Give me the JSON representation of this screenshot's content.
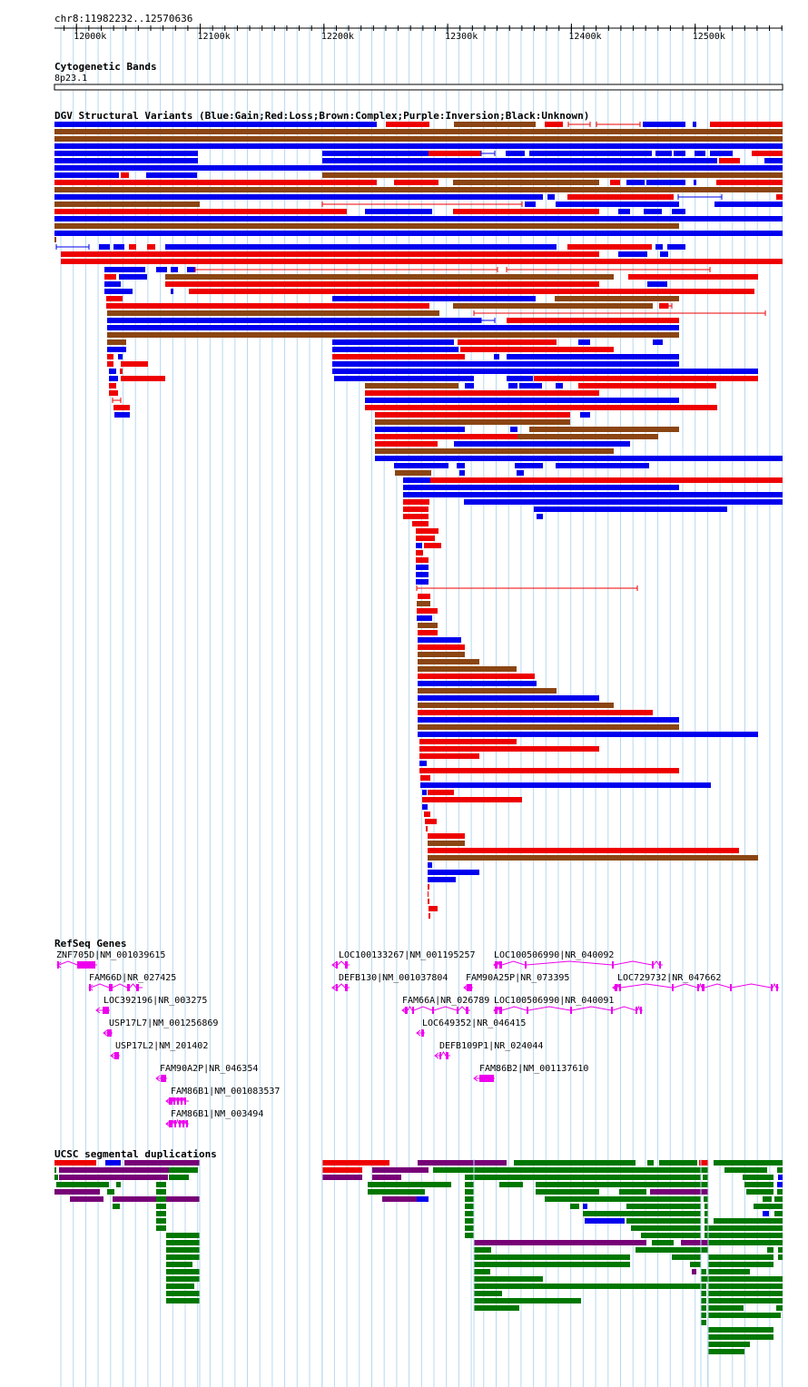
{
  "position": "chr8:11982232..12570636",
  "ruler": {
    "start_bp": 11982232,
    "end_bp": 12570636,
    "ticks": [
      {
        "bp": 12000000,
        "label": "12000k"
      },
      {
        "bp": 12100000,
        "label": "12100k"
      },
      {
        "bp": 12200000,
        "label": "12200k"
      },
      {
        "bp": 12300000,
        "label": "12300k"
      },
      {
        "bp": 12400000,
        "label": "12400k"
      },
      {
        "bp": 12500000,
        "label": "12500k"
      }
    ]
  },
  "colors": {
    "gain": "#0000ee",
    "loss": "#ee0000",
    "complex": "#8b4513",
    "gene": "#ee00ee",
    "segdup_green": "#007700",
    "segdup_purple": "#770077",
    "segdup_red": "#ee0000",
    "segdup_blue": "#0000ee",
    "grid": "#b8d8f0"
  },
  "tracks": {
    "cytoband": {
      "title": "Cytogenetic Bands",
      "band": "8p23.1"
    },
    "dgv": {
      "title": "DGV Structural Variants (Blue:Gain;Red:Loss;Brown:Complex;Purple:Inversion;Black:Unknown)"
    },
    "refseq": {
      "title": "RefSeq Genes",
      "genes": [
        {
          "label": "ZNF705D|NM_001039615"
        },
        {
          "label": "FAM66D|NR_027425"
        },
        {
          "label": "LOC392196|NR_003275"
        },
        {
          "label": "USP17L7|NM_001256869"
        },
        {
          "label": "USP17L2|NM_201402"
        },
        {
          "label": "FAM90A2P|NR_046354"
        },
        {
          "label": "FAM86B1|NM_001083537"
        },
        {
          "label": "FAM86B1|NM_003494"
        },
        {
          "label": "LOC100133267|NM_001195257"
        },
        {
          "label": "DEFB130|NM_001037804"
        },
        {
          "label": "FAM66A|NR_026789"
        },
        {
          "label": "LOC649352|NR_046415"
        },
        {
          "label": "DEFB109P1|NR_024044"
        },
        {
          "label": "LOC100506990|NR_040092"
        },
        {
          "label": "FAM90A25P|NR_073395"
        },
        {
          "label": "LOC100506990|NR_040091"
        },
        {
          "label": "FAM86B2|NM_001137610"
        },
        {
          "label": "LOC729732|NR_047662"
        }
      ]
    },
    "segdup": {
      "title": "UCSC segmental duplications"
    }
  }
}
